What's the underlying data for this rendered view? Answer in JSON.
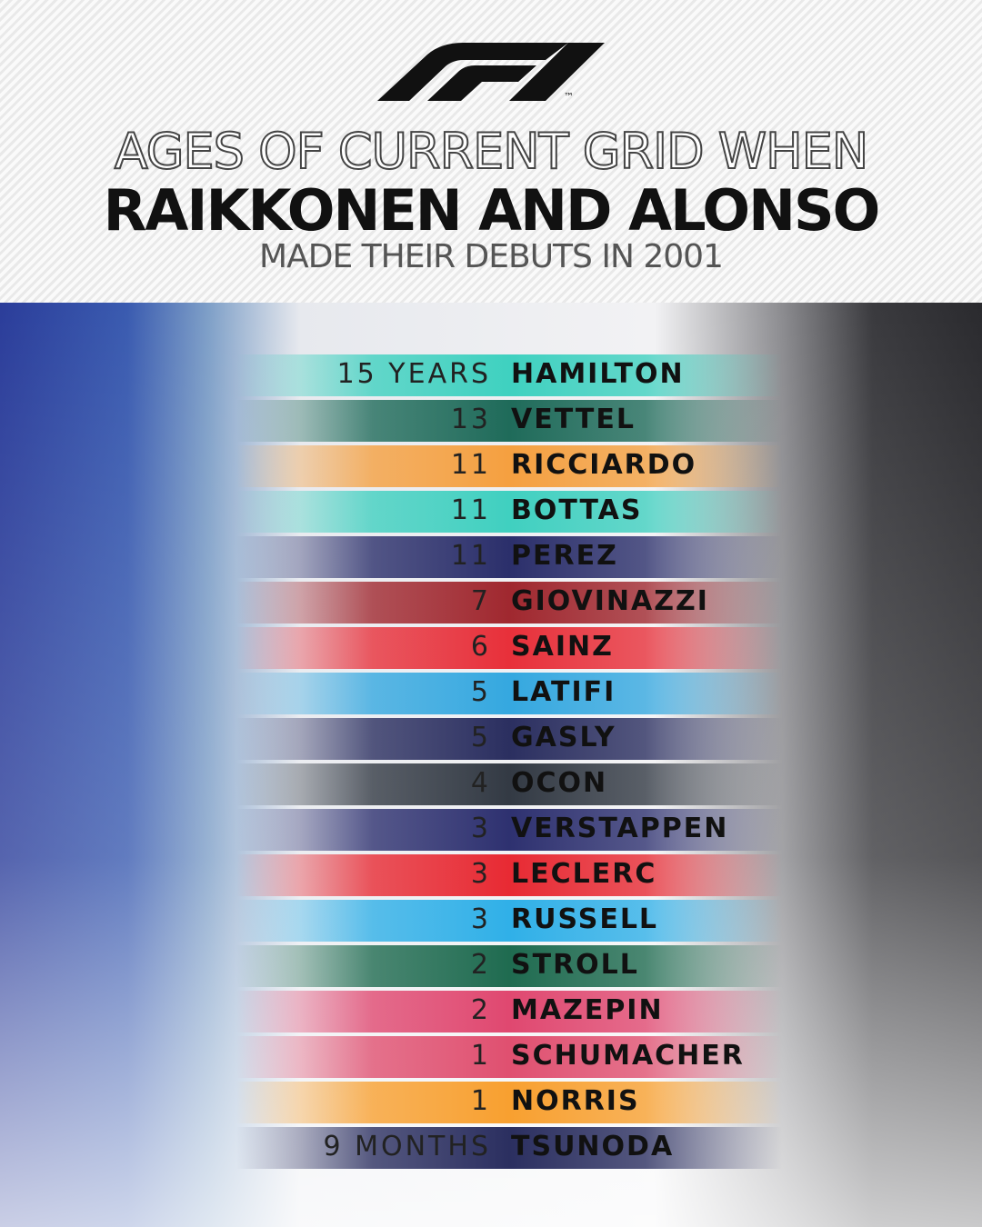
{
  "header": {
    "trademark": "™",
    "title_line1": "AGES OF CURRENT GRID WHEN",
    "title_line2": "RAIKKONEN AND ALONSO",
    "title_line3": "MADE THEIR DEBUTS IN 2001"
  },
  "table": {
    "rows": [
      {
        "age": "15 YEARS",
        "name": "HAMILTON",
        "color": "#3fd1c0"
      },
      {
        "age": "13",
        "name": "VETTEL",
        "color": "#1f6b5a"
      },
      {
        "age": "11",
        "name": "RICCIARDO",
        "color": "#f5a040"
      },
      {
        "age": "11",
        "name": "BOTTAS",
        "color": "#40d0c0"
      },
      {
        "age": "11",
        "name": "PEREZ",
        "color": "#2b2f6b"
      },
      {
        "age": "7",
        "name": "GIOVINAZZI",
        "color": "#a0282f"
      },
      {
        "age": "6",
        "name": "SAINZ",
        "color": "#e8303a"
      },
      {
        "age": "5",
        "name": "LATIFI",
        "color": "#35a8e0"
      },
      {
        "age": "5",
        "name": "GASLY",
        "color": "#2b2f60"
      },
      {
        "age": "4",
        "name": "OCON",
        "color": "#333a44"
      },
      {
        "age": "3",
        "name": "VERSTAPPEN",
        "color": "#2e3170"
      },
      {
        "age": "3",
        "name": "LECLERC",
        "color": "#e82a33"
      },
      {
        "age": "3",
        "name": "RUSSELL",
        "color": "#30b0e8"
      },
      {
        "age": "2",
        "name": "STROLL",
        "color": "#1f6b50"
      },
      {
        "age": "2",
        "name": "MAZEPIN",
        "color": "#e04870"
      },
      {
        "age": "1",
        "name": "SCHUMACHER",
        "color": "#e05070"
      },
      {
        "age": "1",
        "name": "NORRIS",
        "color": "#f8a030"
      },
      {
        "age": "9 MONTHS",
        "name": "TSUNODA",
        "color": "#2b2f60"
      }
    ]
  }
}
